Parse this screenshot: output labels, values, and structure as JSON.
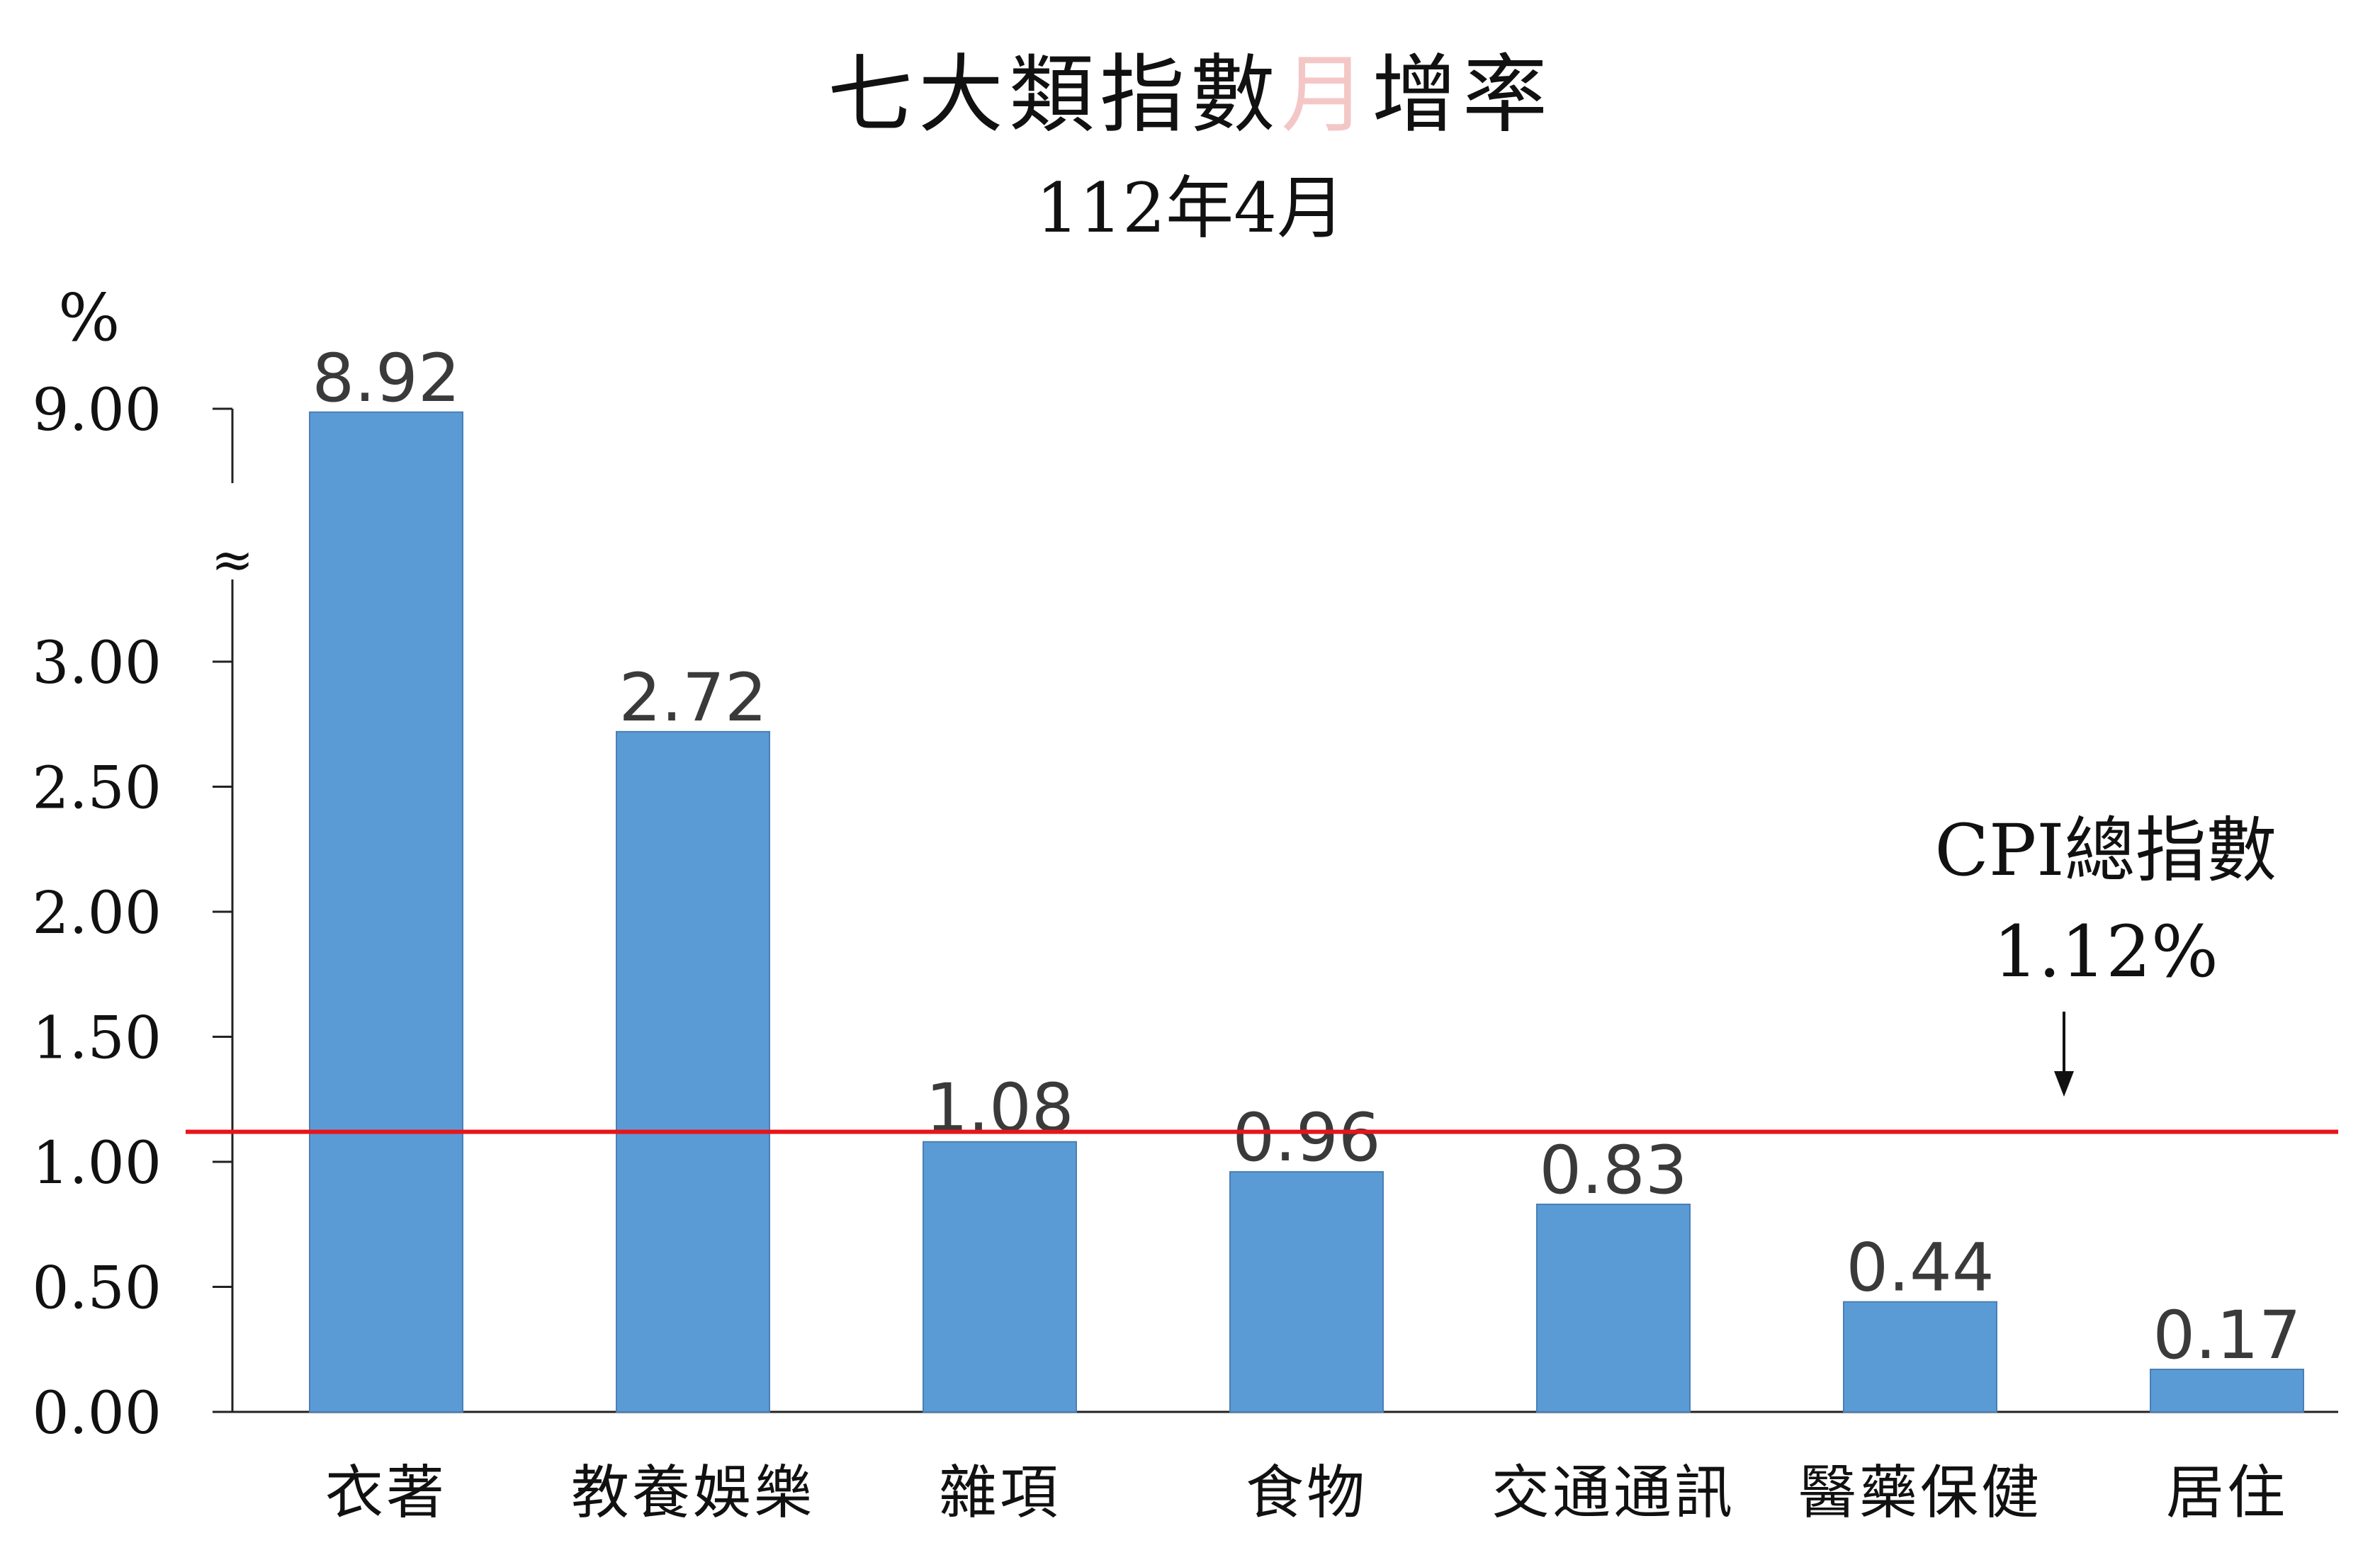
{
  "chart_data": {
    "type": "bar",
    "title": "七大類指數",
    "title_highlight": "月",
    "title_tail": "增率",
    "subtitle": "112年4月",
    "ylabel": "%",
    "categories": [
      "衣著",
      "教養娛樂",
      "雜項",
      "食物",
      "交通通訊",
      "醫藥保健",
      "居住"
    ],
    "values": [
      8.92,
      2.72,
      1.08,
      0.96,
      0.83,
      0.44,
      0.17
    ],
    "value_labels": [
      "8.92",
      "2.72",
      "1.08",
      "0.96",
      "0.83",
      "0.44",
      "0.17"
    ],
    "yticks": [
      "0.00",
      "0.50",
      "1.00",
      "1.50",
      "2.00",
      "2.50",
      "3.00",
      "9.00"
    ],
    "ylim": [
      0,
      9.0
    ],
    "axis_break": {
      "from": 3.0,
      "to": 9.0,
      "symbol": "≈"
    },
    "reference_line": {
      "value": 1.12,
      "label_top": "CPI總指數",
      "label_bottom": "1.12%",
      "color": "#e8141b"
    },
    "bar_color": "#5b9bd5",
    "bar_edge_color": "#4a7fb5",
    "title_highlight_color": "#f4c7c7",
    "grid": false,
    "legend": "none"
  }
}
